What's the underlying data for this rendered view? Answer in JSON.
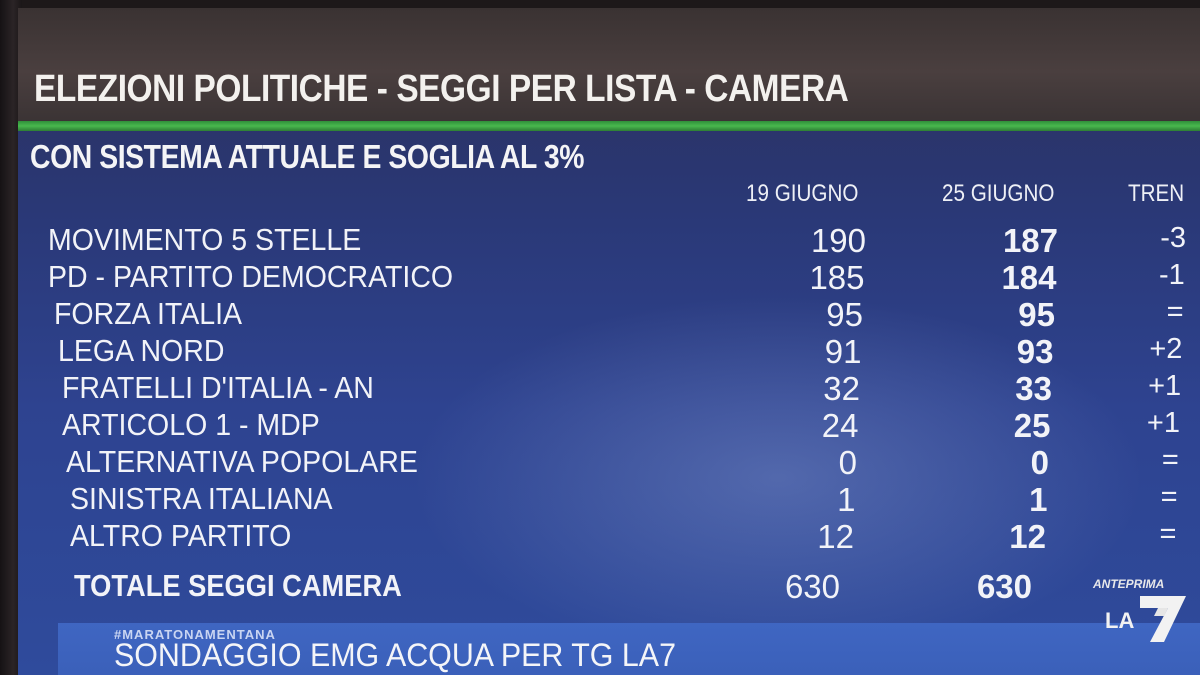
{
  "header": {
    "title": "ELEZIONI POLITICHE - SEGGI PER LISTA - CAMERA",
    "subtitle": "CON SISTEMA ATTUALE E SOGLIA AL 3%"
  },
  "table": {
    "columns": [
      "19 GIUGNO",
      "25 GIUGNO",
      "TREN"
    ],
    "rows": [
      {
        "party": "MOVIMENTO 5 STELLE",
        "june19": "190",
        "june25": "187",
        "trend": "-3"
      },
      {
        "party": "PD - PARTITO DEMOCRATICO",
        "june19": "185",
        "june25": "184",
        "trend": "-1"
      },
      {
        "party": "FORZA ITALIA",
        "june19": "95",
        "june25": "95",
        "trend": "="
      },
      {
        "party": "LEGA NORD",
        "june19": "91",
        "june25": "93",
        "trend": "+2"
      },
      {
        "party": "FRATELLI D'ITALIA - AN",
        "june19": "32",
        "june25": "33",
        "trend": "+1"
      },
      {
        "party": "ARTICOLO 1  - MDP",
        "june19": "24",
        "june25": "25",
        "trend": "+1"
      },
      {
        "party": "ALTERNATIVA POPOLARE",
        "june19": "0",
        "june25": "0",
        "trend": "="
      },
      {
        "party": "SINISTRA ITALIANA",
        "june19": "1",
        "june25": "1",
        "trend": "="
      },
      {
        "party": "ALTRO PARTITO",
        "june19": "12",
        "june25": "12",
        "trend": "="
      }
    ],
    "total": {
      "label": "TOTALE SEGGI CAMERA",
      "june19": "630",
      "june25": "630"
    }
  },
  "footer": {
    "hashtag": "#MARATONAMENTANA",
    "source": "SONDAGGIO EMG ACQUA PER TG LA7"
  },
  "logo": {
    "top_text": "ANTEPRIMA",
    "brand": "LA",
    "numeral": "7"
  },
  "colors": {
    "accent_green": "#49b84e",
    "background_blue": "#2e4390",
    "footer_blue": "#3f66c2"
  }
}
